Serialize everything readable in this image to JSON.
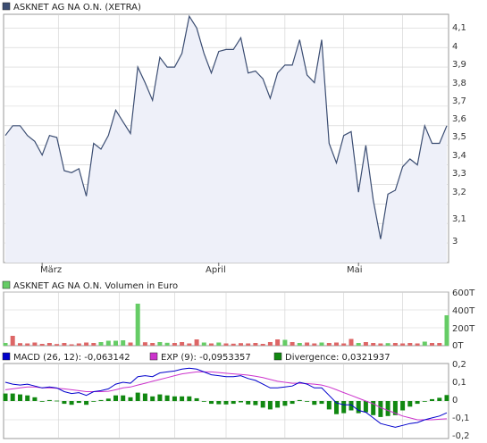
{
  "colors": {
    "price_line": "#3b4d72",
    "price_fill": "#eef0f9",
    "volume_up": "#66cc66",
    "volume_down": "#dd6666",
    "macd": "#0000cc",
    "exp": "#cc33cc",
    "divergence": "#118811",
    "grid": "#d0d0d0",
    "border": "#999999"
  },
  "panels": {
    "price": {
      "legend": "ASKNET AG NA O.N. (XETRA)",
      "legend_icon_color": "#3b4d72",
      "y_ticks": [
        "4,1",
        "4",
        "3,9",
        "3,8",
        "3,7",
        "3,6",
        "3,5",
        "3,4",
        "3,3",
        "3,2",
        "3,1",
        "3"
      ],
      "x_labels": [
        "März",
        "April",
        "Mai"
      ]
    },
    "volume": {
      "legend": "ASKNET AG NA O.N. Volumen in Euro",
      "legend_icon_color": "#66cc66",
      "y_ticks": [
        "600T",
        "400T",
        "200T",
        "0T"
      ]
    },
    "macd": {
      "legends": [
        {
          "label": "MACD (26, 12): -0,063142",
          "color": "#0000cc"
        },
        {
          "label": "EXP (9): -0,0953357",
          "color": "#cc33cc"
        },
        {
          "label": "Divergence: 0,0321937",
          "color": "#118811"
        }
      ],
      "y_ticks": [
        "0,2",
        "0,1",
        "0",
        "-0,1",
        "-0,2"
      ]
    }
  },
  "chart_data": [
    {
      "type": "area",
      "title": "ASKNET AG NA O.N. (XETRA)",
      "ylim": [
        2.9,
        4.17
      ],
      "x_labels": [
        "März",
        "April",
        "Mai"
      ],
      "values": [
        3.55,
        3.6,
        3.6,
        3.55,
        3.52,
        3.45,
        3.55,
        3.54,
        3.37,
        3.36,
        3.38,
        3.24,
        3.51,
        3.48,
        3.55,
        3.68,
        3.62,
        3.56,
        3.9,
        3.82,
        3.73,
        3.95,
        3.9,
        3.9,
        3.97,
        4.16,
        4.1,
        3.97,
        3.87,
        3.98,
        3.99,
        3.99,
        4.05,
        3.87,
        3.88,
        3.84,
        3.74,
        3.87,
        3.91,
        3.91,
        4.04,
        3.86,
        3.82,
        4.04,
        3.51,
        3.41,
        3.55,
        3.57,
        3.26,
        3.5,
        3.22,
        3.02,
        3.25,
        3.27,
        3.39,
        3.43,
        3.4,
        3.6,
        3.51,
        3.51,
        3.6
      ]
    },
    {
      "type": "bar",
      "title": "ASKNET AG NA O.N. Volumen in Euro",
      "ylim": [
        0,
        600
      ],
      "unit": "T",
      "values": [
        30,
        110,
        28,
        25,
        35,
        20,
        30,
        18,
        30,
        15,
        25,
        35,
        30,
        40,
        55,
        55,
        60,
        35,
        470,
        38,
        30,
        40,
        32,
        30,
        40,
        25,
        70,
        35,
        25,
        35,
        25,
        22,
        28,
        25,
        30,
        20,
        40,
        70,
        65,
        40,
        30,
        35,
        25,
        35,
        30,
        35,
        25,
        75,
        30,
        40,
        30,
        25,
        28,
        30,
        25,
        30,
        25,
        45,
        30,
        30,
        340
      ],
      "up": [
        true,
        false,
        false,
        false,
        false,
        false,
        false,
        false,
        false,
        false,
        false,
        false,
        false,
        true,
        true,
        true,
        true,
        false,
        true,
        false,
        false,
        true,
        true,
        false,
        false,
        false,
        false,
        true,
        false,
        true,
        false,
        false,
        false,
        false,
        false,
        false,
        false,
        false,
        true,
        false,
        true,
        false,
        false,
        true,
        false,
        false,
        false,
        false,
        true,
        false,
        false,
        false,
        true,
        false,
        false,
        false,
        false,
        true,
        false,
        false,
        true
      ]
    },
    {
      "type": "line",
      "series": [
        {
          "name": "MACD (26, 12)",
          "values": [
            0.1,
            0.09,
            0.085,
            0.09,
            0.08,
            0.07,
            0.075,
            0.07,
            0.05,
            0.04,
            0.045,
            0.03,
            0.05,
            0.055,
            0.065,
            0.09,
            0.1,
            0.095,
            0.13,
            0.135,
            0.13,
            0.15,
            0.155,
            0.16,
            0.17,
            0.175,
            0.17,
            0.155,
            0.14,
            0.135,
            0.13,
            0.13,
            0.135,
            0.12,
            0.11,
            0.09,
            0.07,
            0.07,
            0.075,
            0.08,
            0.1,
            0.09,
            0.07,
            0.07,
            0.03,
            -0.01,
            -0.02,
            -0.02,
            -0.05,
            -0.06,
            -0.09,
            -0.12,
            -0.13,
            -0.14,
            -0.13,
            -0.12,
            -0.115,
            -0.1,
            -0.09,
            -0.08,
            -0.063
          ]
        },
        {
          "name": "EXP (9)",
          "values": [
            0.06,
            0.065,
            0.07,
            0.075,
            0.075,
            0.07,
            0.07,
            0.068,
            0.065,
            0.06,
            0.055,
            0.05,
            0.05,
            0.05,
            0.052,
            0.06,
            0.07,
            0.075,
            0.085,
            0.095,
            0.105,
            0.115,
            0.125,
            0.135,
            0.145,
            0.15,
            0.155,
            0.155,
            0.155,
            0.152,
            0.148,
            0.145,
            0.142,
            0.138,
            0.132,
            0.125,
            0.115,
            0.105,
            0.1,
            0.095,
            0.095,
            0.093,
            0.09,
            0.085,
            0.075,
            0.06,
            0.045,
            0.03,
            0.015,
            0.0,
            -0.015,
            -0.035,
            -0.05,
            -0.065,
            -0.08,
            -0.09,
            -0.1,
            -0.1,
            -0.1,
            -0.097,
            -0.095
          ]
        },
        {
          "name": "Divergence",
          "values": [
            0.04,
            0.04,
            0.035,
            0.03,
            0.02,
            0.0,
            0.005,
            0.002,
            -0.015,
            -0.02,
            -0.01,
            -0.02,
            0.0,
            0.005,
            0.013,
            0.03,
            0.03,
            0.02,
            0.045,
            0.04,
            0.025,
            0.035,
            0.03,
            0.025,
            0.025,
            0.025,
            0.015,
            0.0,
            -0.015,
            -0.017,
            -0.018,
            -0.015,
            -0.007,
            -0.018,
            -0.022,
            -0.035,
            -0.045,
            -0.035,
            -0.025,
            -0.015,
            0.005,
            -0.003,
            -0.02,
            -0.015,
            -0.045,
            -0.07,
            -0.065,
            -0.05,
            -0.065,
            -0.06,
            -0.075,
            -0.085,
            -0.08,
            -0.075,
            -0.05,
            -0.03,
            -0.015,
            0.0,
            0.01,
            0.017,
            0.032
          ]
        }
      ],
      "ylim": [
        -0.2,
        0.2
      ]
    }
  ]
}
